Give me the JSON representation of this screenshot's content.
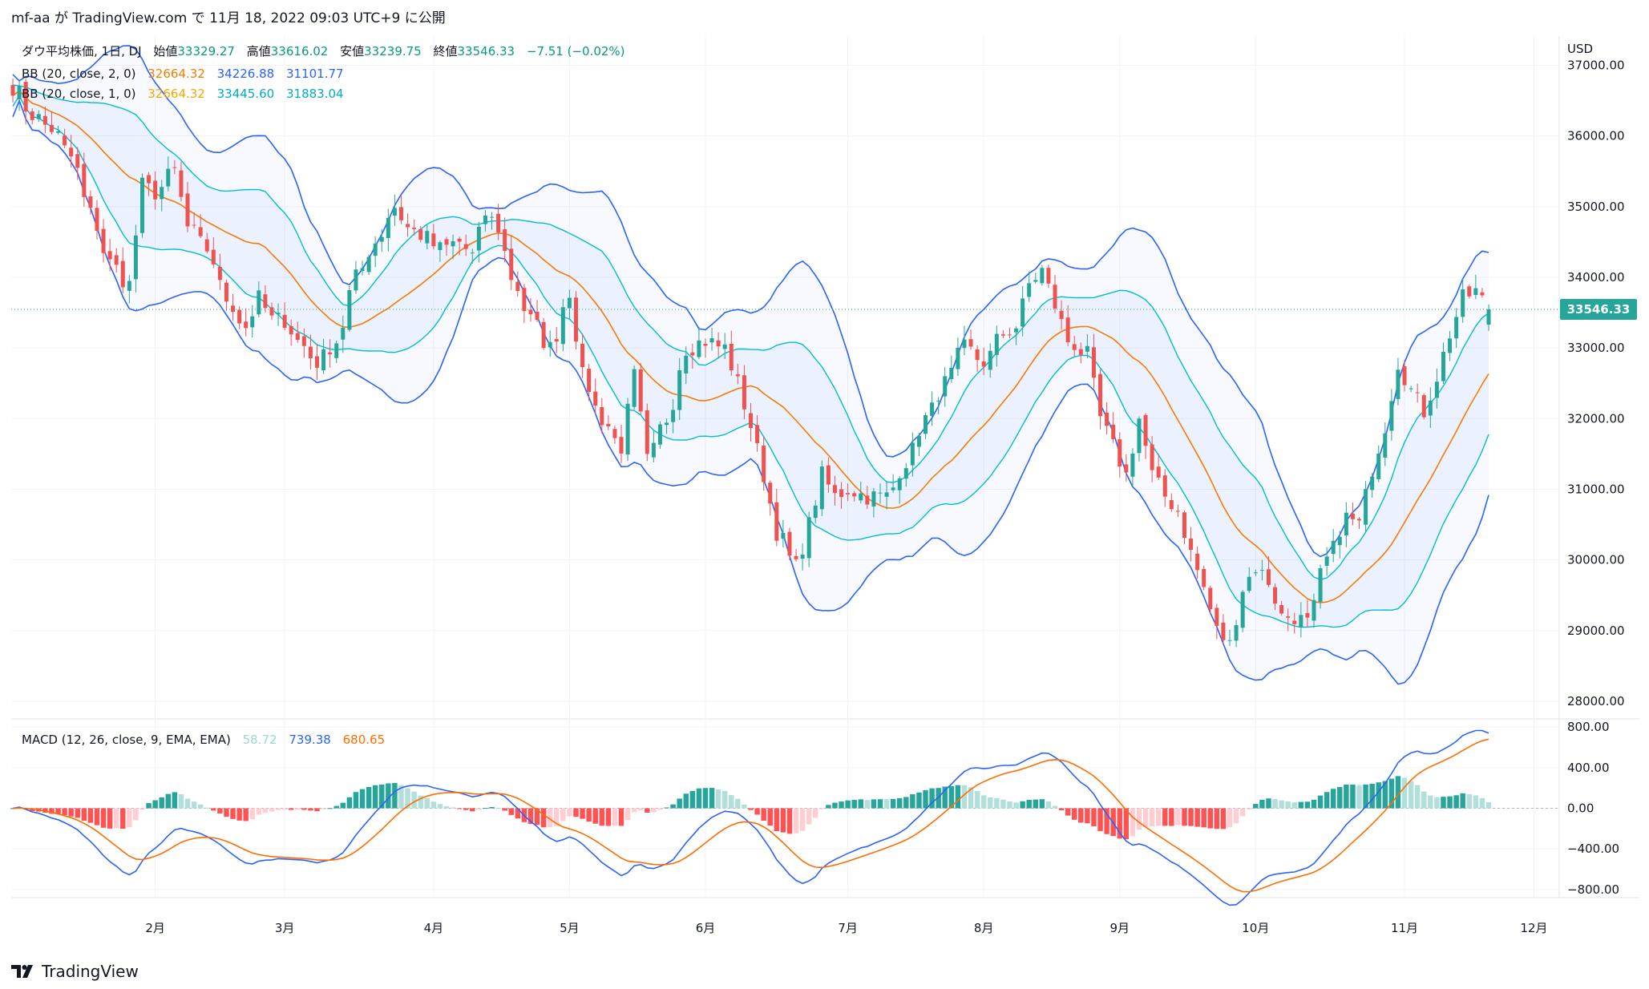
{
  "header": {
    "snapshot_text": "mf-aa が TradingView.com で 11月 18, 2022 09:03 UTC+9 に公開"
  },
  "colors": {
    "up": "#26a69a",
    "down": "#ef5350",
    "bb2_basis": "#f57c00",
    "bb2_upper": "#2962ff",
    "bb2_lower": "#2962ff",
    "bb1_upper": "#00bcd4",
    "bb1_lower": "#00bcd4",
    "macd_line": "#2962ff",
    "signal_line": "#ff6d00",
    "hist_up_strong": "#26a69a",
    "hist_up_weak": "#b2dfdb",
    "hist_down_strong": "#ff5252",
    "hist_down_weak": "#ffcdd2",
    "price_tag": "#26a69a",
    "band_fill": "#2962ff"
  },
  "legend": {
    "main": {
      "label": "ダウ平均株価, 1日, DJ",
      "open_label": "始値",
      "open": "33329.27",
      "high_label": "高値",
      "high": "33616.02",
      "low_label": "安値",
      "low": "33239.75",
      "close_label": "終値",
      "close": "33546.33",
      "change": "−7.51 (−0.02%)"
    },
    "bb2": {
      "label": "BB (20, close, 2, 0)",
      "v1": "32664.32",
      "v2": "34226.88",
      "v3": "31101.77"
    },
    "bb1": {
      "label": "BB (20, close, 1, 0)",
      "v1": "32664.32",
      "v2": "33445.60",
      "v3": "31883.04"
    },
    "macd": {
      "label": "MACD (12, 26, close, 9, EMA, EMA)",
      "hist": "58.72",
      "macd": "739.38",
      "signal": "680.65"
    }
  },
  "axis": {
    "currency": "USD",
    "price_ticks": [
      "37000.00",
      "36000.00",
      "35000.00",
      "34000.00",
      "33000.00",
      "32000.00",
      "31000.00",
      "30000.00",
      "29000.00",
      "28000.00"
    ],
    "price_tick_values": [
      37000,
      36000,
      35000,
      34000,
      33000,
      32000,
      31000,
      30000,
      29000,
      28000
    ],
    "last_price_tag": "33546.33",
    "macd_ticks": [
      "800.00",
      "400.00",
      "0.00",
      "−400.00",
      "−800.00"
    ],
    "macd_tick_values": [
      800,
      400,
      0,
      -400,
      -800
    ],
    "month_labels": [
      "2月",
      "3月",
      "4月",
      "5月",
      "6月",
      "7月",
      "8月",
      "9月",
      "10月",
      "11月",
      "12月"
    ],
    "month_day_index": [
      22,
      42,
      65,
      86,
      107,
      129,
      150,
      171,
      192,
      215,
      235
    ]
  },
  "footer": {
    "logo_text": "TradingView"
  },
  "chart_data": {
    "type": "candlestick",
    "symbol": "DJ",
    "interval": "1日",
    "price_range": [
      27750,
      37300
    ],
    "macd_range": [
      -880,
      880
    ],
    "price_anchors": [
      [
        0,
        36700
      ],
      [
        3,
        36300
      ],
      [
        6,
        36100
      ],
      [
        9,
        35700
      ],
      [
        12,
        34900
      ],
      [
        15,
        34200
      ],
      [
        18,
        33900
      ],
      [
        20,
        35300
      ],
      [
        22,
        35200
      ],
      [
        25,
        35500
      ],
      [
        27,
        34700
      ],
      [
        30,
        34400
      ],
      [
        33,
        33700
      ],
      [
        36,
        33300
      ],
      [
        38,
        33700
      ],
      [
        40,
        33400
      ],
      [
        42,
        33400
      ],
      [
        44,
        33100
      ],
      [
        47,
        32800
      ],
      [
        50,
        33100
      ],
      [
        53,
        34000
      ],
      [
        56,
        34500
      ],
      [
        59,
        35000
      ],
      [
        61,
        34700
      ],
      [
        63,
        34600
      ],
      [
        66,
        34400
      ],
      [
        69,
        34500
      ],
      [
        71,
        34300
      ],
      [
        73,
        34900
      ],
      [
        75,
        34700
      ],
      [
        77,
        34000
      ],
      [
        80,
        33400
      ],
      [
        83,
        33000
      ],
      [
        86,
        33800
      ],
      [
        88,
        32600
      ],
      [
        91,
        32000
      ],
      [
        94,
        31600
      ],
      [
        96,
        32600
      ],
      [
        98,
        31400
      ],
      [
        101,
        32000
      ],
      [
        104,
        33000
      ],
      [
        107,
        33100
      ],
      [
        110,
        33000
      ],
      [
        112,
        32500
      ],
      [
        114,
        31900
      ],
      [
        116,
        31200
      ],
      [
        118,
        30400
      ],
      [
        121,
        29900
      ],
      [
        123,
        30500
      ],
      [
        125,
        31200
      ],
      [
        127,
        30900
      ],
      [
        129,
        31000
      ],
      [
        132,
        30900
      ],
      [
        135,
        30900
      ],
      [
        138,
        31400
      ],
      [
        141,
        32000
      ],
      [
        144,
        32500
      ],
      [
        147,
        33000
      ],
      [
        150,
        32800
      ],
      [
        153,
        33200
      ],
      [
        155,
        33300
      ],
      [
        157,
        33900
      ],
      [
        159,
        34100
      ],
      [
        161,
        33600
      ],
      [
        163,
        33100
      ],
      [
        166,
        32900
      ],
      [
        168,
        32000
      ],
      [
        170,
        31600
      ],
      [
        172,
        31200
      ],
      [
        174,
        32000
      ],
      [
        176,
        31200
      ],
      [
        178,
        30900
      ],
      [
        180,
        30700
      ],
      [
        182,
        30100
      ],
      [
        184,
        29600
      ],
      [
        186,
        29000
      ],
      [
        188,
        28800
      ],
      [
        190,
        29600
      ],
      [
        192,
        29900
      ],
      [
        194,
        29700
      ],
      [
        196,
        29200
      ],
      [
        198,
        29200
      ],
      [
        200,
        29100
      ],
      [
        203,
        30000
      ],
      [
        206,
        30600
      ],
      [
        208,
        30500
      ],
      [
        210,
        31300
      ],
      [
        212,
        31900
      ],
      [
        214,
        32800
      ],
      [
        216,
        32400
      ],
      [
        218,
        32100
      ],
      [
        220,
        32600
      ],
      [
        222,
        33200
      ],
      [
        224,
        33700
      ],
      [
        226,
        33800
      ],
      [
        228,
        33546.33
      ]
    ],
    "last_candle": {
      "open": 33329.27,
      "high": 33616.02,
      "low": 33239.75,
      "close": 33546.33
    },
    "bollinger_bands": [
      {
        "name": "BB (20, close, 2, 0)",
        "basis": 32664.32,
        "upper": 34226.88,
        "lower": 31101.77
      },
      {
        "name": "BB (20, close, 1, 0)",
        "basis": 32664.32,
        "upper": 33445.6,
        "lower": 31883.04
      }
    ],
    "macd": {
      "name": "MACD (12, 26, close, 9, EMA, EMA)",
      "histogram": 58.72,
      "macd": 739.38,
      "signal": 680.65
    }
  }
}
